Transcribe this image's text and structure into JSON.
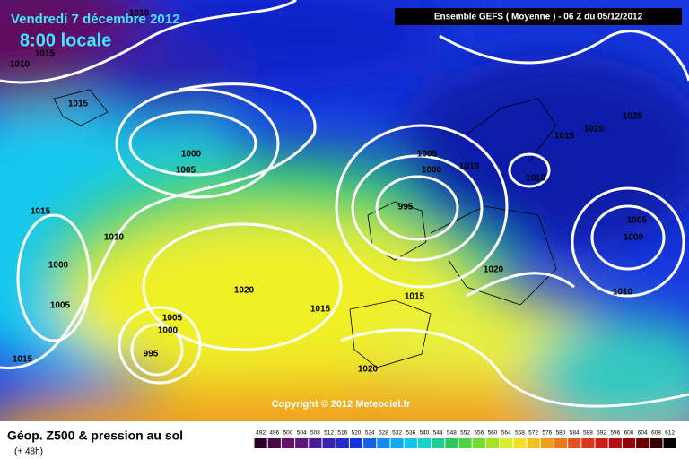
{
  "header": {
    "date": "Vendredi 7 décembre 2012",
    "time": "8:00 locale",
    "model": "Ensemble GEFS ( Moyenne )  -  06 Z du 05/12/2012"
  },
  "isobar_labels": [
    1010,
    1015,
    1010,
    1015,
    1000,
    1005,
    1015,
    1010,
    1000,
    1005,
    1020,
    1005,
    1000,
    995,
    1015,
    1015,
    1015,
    1020,
    1005,
    1000,
    995,
    1010,
    1010,
    1015,
    1020,
    1025,
    1005,
    1000,
    1010,
    1020
  ],
  "copyright": "Copyright © 2012 Meteociel.fr",
  "legend": {
    "title": "Géop. Z500 & pression au sol",
    "lead": "(+ 48h)",
    "scale": [
      492,
      496,
      500,
      504,
      508,
      512,
      516,
      520,
      524,
      528,
      532,
      536,
      540,
      544,
      548,
      552,
      556,
      560,
      564,
      568,
      572,
      576,
      580,
      584,
      588,
      592,
      596,
      600,
      604,
      608,
      612
    ]
  }
}
